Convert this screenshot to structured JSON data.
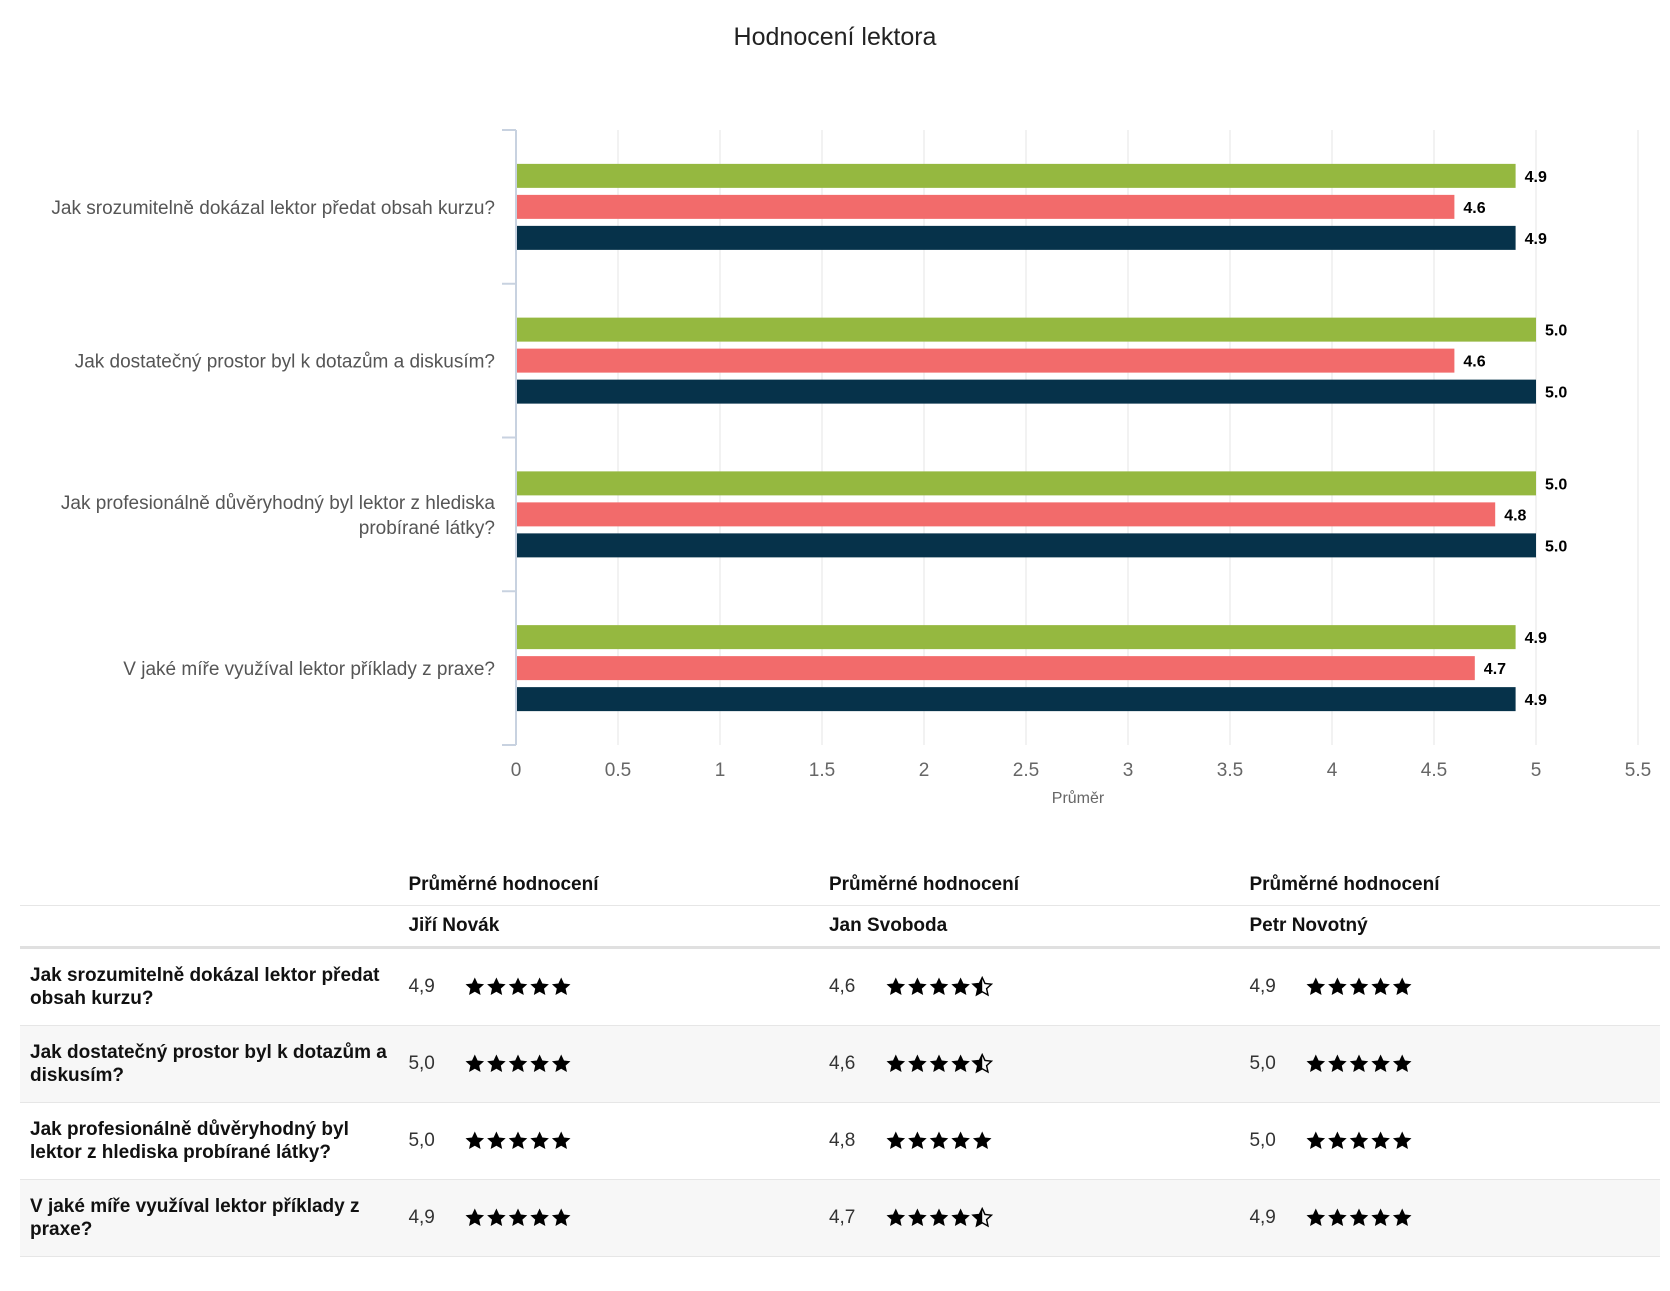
{
  "chart_data": {
    "type": "bar",
    "orientation": "horizontal",
    "title": "Hodnocení lektora",
    "xlabel": "Průměr",
    "ylabel": "",
    "xlim": [
      0,
      5.5
    ],
    "xticks": [
      "0",
      "0.5",
      "1",
      "1.5",
      "2",
      "2.5",
      "3",
      "3.5",
      "4",
      "4.5",
      "5",
      "5.5"
    ],
    "grid": true,
    "legend": "none",
    "categories": [
      "Jak srozumitelně dokázal lektor předat obsah kurzu?",
      "Jak dostatečný prostor byl k dotazům a diskusím?",
      "Jak profesionálně důvěryhodný byl lektor z hlediska probírané látky?",
      "V jaké míře využíval lektor příklady z praxe?"
    ],
    "series": [
      {
        "values": [
          4.9,
          5.0,
          5.0,
          4.9
        ],
        "labels": [
          "4.9",
          "5.0",
          "5.0",
          "4.9"
        ],
        "color": "#95b840"
      },
      {
        "values": [
          4.6,
          4.6,
          4.8,
          4.7
        ],
        "labels": [
          "4.6",
          "4.6",
          "4.8",
          "4.7"
        ],
        "color": "#f26b6b"
      },
      {
        "values": [
          4.9,
          5.0,
          5.0,
          4.9
        ],
        "labels": [
          "4.9",
          "5.0",
          "5.0",
          "4.9"
        ],
        "color": "#06324a"
      }
    ]
  },
  "table": {
    "header_label": "Průměrné hodnocení",
    "lecturers": [
      "Jiří Novák",
      "Jan Svoboda",
      "Petr Novotný"
    ],
    "rows": [
      {
        "question": "Jak srozumitelně dokázal lektor předat obsah kurzu?",
        "values": [
          "4,9",
          "4,6",
          "4,9"
        ],
        "ratings": [
          4.9,
          4.6,
          4.9
        ]
      },
      {
        "question": "Jak dostatečný prostor byl k dotazům a diskusím?",
        "values": [
          "5,0",
          "4,6",
          "5,0"
        ],
        "ratings": [
          5.0,
          4.6,
          5.0
        ]
      },
      {
        "question": "Jak profesionálně důvěryhodný byl lektor z hlediska probírané látky?",
        "values": [
          "5,0",
          "4,8",
          "5,0"
        ],
        "ratings": [
          5.0,
          4.8,
          5.0
        ]
      },
      {
        "question": "V jaké míře využíval lektor příklady z praxe?",
        "values": [
          "4,9",
          "4,7",
          "4,9"
        ],
        "ratings": [
          4.9,
          4.7,
          4.9
        ]
      }
    ]
  },
  "icons": {
    "full": "star-full-icon",
    "half": "star-half-icon"
  }
}
